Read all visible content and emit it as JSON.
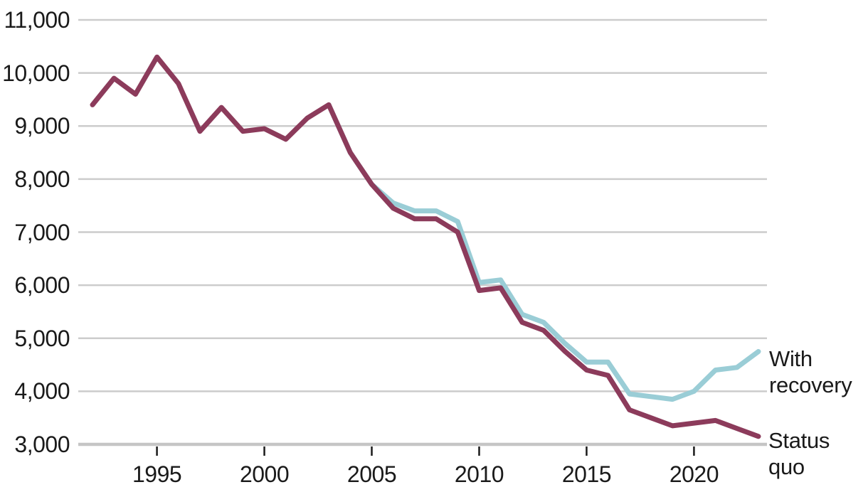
{
  "chart_data": {
    "type": "line",
    "title": "",
    "xlabel": "",
    "ylabel": "",
    "x": [
      1992,
      1993,
      1994,
      1995,
      1996,
      1997,
      1998,
      1999,
      2000,
      2001,
      2002,
      2003,
      2004,
      2005,
      2006,
      2007,
      2008,
      2009,
      2010,
      2011,
      2012,
      2013,
      2014,
      2015,
      2016,
      2017,
      2018,
      2019,
      2020,
      2021,
      2022,
      2023
    ],
    "series": [
      {
        "name": "With recovery",
        "color": "#9acdd6",
        "values": [
          null,
          null,
          null,
          null,
          null,
          null,
          null,
          null,
          null,
          null,
          null,
          9400,
          8500,
          7900,
          7550,
          7400,
          7400,
          7200,
          6050,
          6100,
          5450,
          5300,
          4900,
          4550,
          4550,
          3950,
          3900,
          3850,
          4000,
          4400,
          4450,
          4750
        ]
      },
      {
        "name": "Status quo",
        "color": "#8c3b5b",
        "values": [
          9400,
          9900,
          9600,
          10300,
          9800,
          8900,
          9350,
          8900,
          8950,
          8750,
          9150,
          9400,
          8500,
          7900,
          7450,
          7250,
          7250,
          7000,
          5900,
          5950,
          5300,
          5150,
          4750,
          4400,
          4300,
          3650,
          3500,
          3350,
          3400,
          3450,
          3300,
          3150
        ]
      }
    ],
    "ylim": [
      3000,
      11000
    ],
    "xlim": [
      1992,
      2023
    ],
    "y_tick_values": [
      3000,
      4000,
      5000,
      6000,
      7000,
      8000,
      9000,
      10000,
      11000
    ],
    "y_tick_labels": [
      "3,000",
      "4,000",
      "5,000",
      "6,000",
      "7,000",
      "8,000",
      "9,000",
      "10,000",
      "11,000"
    ],
    "x_tick_values": [
      1995,
      2000,
      2005,
      2010,
      2015,
      2020
    ],
    "x_tick_labels": [
      "1995",
      "2000",
      "2005",
      "2010",
      "2015",
      "2020"
    ],
    "grid": "horizontal",
    "legend_position": "end-of-line-right",
    "colors": {
      "gridline": "#cccccc",
      "baseline": "#c5c5c5",
      "tick_mark": "#1a1a1a",
      "text": "#1a1a1a",
      "background": "#ffffff"
    }
  }
}
